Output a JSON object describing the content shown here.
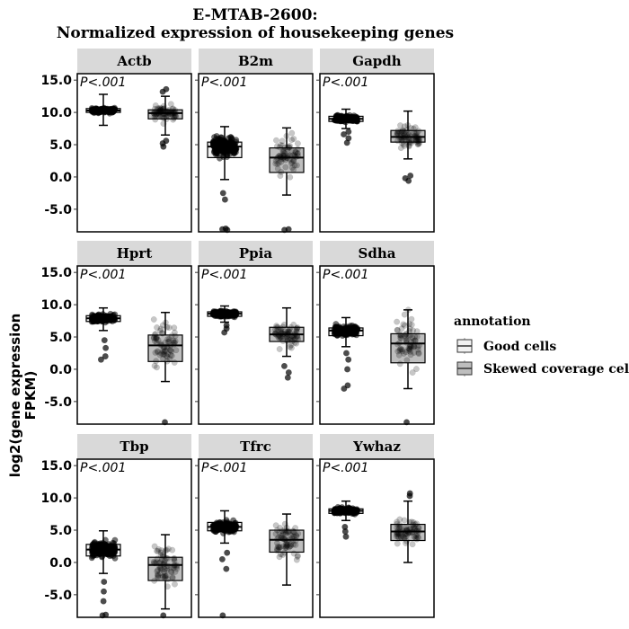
{
  "chart_data": {
    "type": "box",
    "title_line1": "E-MTAB-2600:",
    "title_line2": "Normalized expression of housekeeping genes",
    "ylabel_line1": "log2(gene expression",
    "ylabel_line2": "FPKM)",
    "ylim": [
      -8.5,
      16
    ],
    "yticks": [
      15,
      10,
      5,
      0,
      -5
    ],
    "ytick_labels": [
      "15.0",
      "10.0",
      "5.0",
      "0.0",
      "-5.0"
    ],
    "p_label": "P<.001",
    "legend": {
      "title": "annotation",
      "entries": [
        {
          "label": "Good cells",
          "fill": "#f2f2f2"
        },
        {
          "label": "Skewed coverage cells",
          "fill": "#bebebe"
        }
      ]
    },
    "colors": {
      "strip": "#d9d9d9",
      "good_fill": "#f2f2f2",
      "skewed_fill": "#bebebe",
      "point": "#000000"
    },
    "panels": [
      {
        "gene": "Actb",
        "good": {
          "q1": 10.0,
          "median": 10.3,
          "q3": 10.6,
          "whisker_low": 8.0,
          "whisker_high": 12.8,
          "outliers": []
        },
        "skewed": {
          "q1": 9.0,
          "median": 9.9,
          "q3": 10.4,
          "whisker_low": 6.5,
          "whisker_high": 12.5,
          "outliers": [
            4.7,
            5.2,
            5.6,
            13.2,
            13.6
          ]
        }
      },
      {
        "gene": "B2m",
        "good": {
          "q1": 3.0,
          "median": 4.7,
          "q3": 5.4,
          "whisker_low": -0.4,
          "whisker_high": 7.8,
          "outliers": [
            -8.2,
            -8.1,
            -8.0,
            -3.5,
            -2.5
          ]
        },
        "skewed": {
          "q1": 0.7,
          "median": 3.0,
          "q3": 4.5,
          "whisker_low": -2.8,
          "whisker_high": 7.6,
          "outliers": [
            -8.2,
            -8.1
          ]
        }
      },
      {
        "gene": "Gapdh",
        "good": {
          "q1": 8.6,
          "median": 9.0,
          "q3": 9.4,
          "whisker_low": 7.5,
          "whisker_high": 10.5,
          "outliers": [
            5.3,
            6.0,
            6.6,
            7.0
          ]
        },
        "skewed": {
          "q1": 5.4,
          "median": 6.2,
          "q3": 7.2,
          "whisker_low": 2.8,
          "whisker_high": 10.2,
          "outliers": [
            -0.6,
            -0.2,
            0.2
          ]
        }
      },
      {
        "gene": "Hprt",
        "good": {
          "q1": 7.4,
          "median": 7.9,
          "q3": 8.3,
          "whisker_low": 6.0,
          "whisker_high": 9.5,
          "outliers": [
            1.5,
            2.0,
            3.3,
            4.5
          ]
        },
        "skewed": {
          "q1": 1.2,
          "median": 3.7,
          "q3": 5.3,
          "whisker_low": -1.9,
          "whisker_high": 8.8,
          "outliers": [
            -8.2
          ]
        }
      },
      {
        "gene": "Ppia",
        "good": {
          "q1": 8.2,
          "median": 8.6,
          "q3": 8.9,
          "whisker_low": 7.3,
          "whisker_high": 9.8,
          "outliers": [
            5.7,
            6.3,
            6.8
          ]
        },
        "skewed": {
          "q1": 4.3,
          "median": 5.4,
          "q3": 6.5,
          "whisker_low": 2.0,
          "whisker_high": 9.5,
          "outliers": [
            -1.3,
            -0.5,
            0.5
          ]
        }
      },
      {
        "gene": "Sdha",
        "good": {
          "q1": 5.2,
          "median": 6.0,
          "q3": 6.4,
          "whisker_low": 3.5,
          "whisker_high": 8.0,
          "outliers": [
            -3.0,
            -2.5,
            0.0,
            1.5,
            2.5
          ]
        },
        "skewed": {
          "q1": 1.0,
          "median": 4.0,
          "q3": 5.5,
          "whisker_low": -3.0,
          "whisker_high": 9.2,
          "outliers": [
            -8.2
          ]
        }
      },
      {
        "gene": "Tbp",
        "good": {
          "q1": 1.0,
          "median": 2.0,
          "q3": 2.8,
          "whisker_low": -1.7,
          "whisker_high": 4.9,
          "outliers": [
            -8.2,
            -8.1,
            -6.0,
            -4.5,
            -3.0
          ]
        },
        "skewed": {
          "q1": -2.8,
          "median": -0.4,
          "q3": 0.8,
          "whisker_low": -7.2,
          "whisker_high": 4.3,
          "outliers": [
            -8.2
          ]
        }
      },
      {
        "gene": "Tfrc",
        "good": {
          "q1": 4.9,
          "median": 5.5,
          "q3": 6.2,
          "whisker_low": 3.0,
          "whisker_high": 8.0,
          "outliers": [
            -8.2,
            -1.0,
            0.5,
            1.5
          ]
        },
        "skewed": {
          "q1": 1.6,
          "median": 3.5,
          "q3": 5.0,
          "whisker_low": -3.5,
          "whisker_high": 7.5,
          "outliers": []
        }
      },
      {
        "gene": "Ywhaz",
        "good": {
          "q1": 7.6,
          "median": 8.0,
          "q3": 8.3,
          "whisker_low": 6.5,
          "whisker_high": 9.5,
          "outliers": [
            4.0,
            4.8,
            5.5
          ]
        },
        "skewed": {
          "q1": 3.4,
          "median": 4.8,
          "q3": 5.9,
          "whisker_low": 0.0,
          "whisker_high": 9.5,
          "outliers": [
            10.3,
            10.7
          ]
        }
      }
    ]
  }
}
